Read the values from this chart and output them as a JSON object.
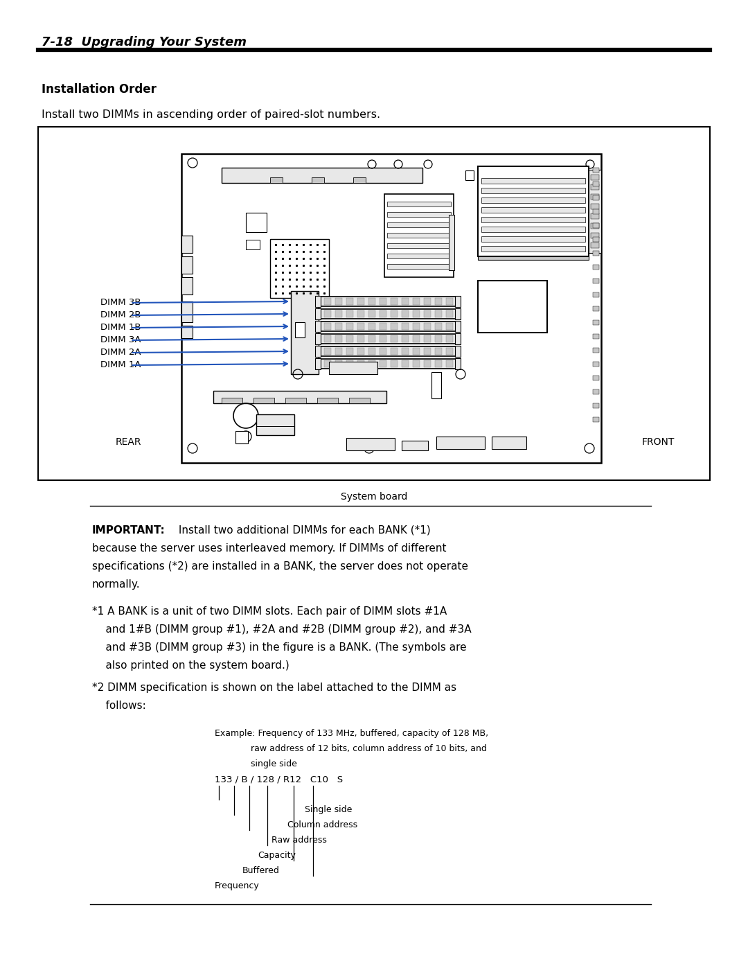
{
  "page_title": "7-18  Upgrading Your System",
  "section_title": "Installation Order",
  "intro_text": "Install two DIMMs in ascending order of paired-slot numbers.",
  "board_caption": "System board",
  "rear_label": "REAR",
  "front_label": "FRONT",
  "dimm_labels": [
    "DIMM 3B",
    "DIMM 2B",
    "DIMM 1B",
    "DIMM 3A",
    "DIMM 2A",
    "DIMM 1A"
  ],
  "important_bold": "IMPORTANT:",
  "important_rest": " Install two additional DIMMs for each BANK (*1)",
  "important_line2": "because the server uses interleaved memory. If DIMMs of different",
  "important_line3": "specifications (*2) are installed in a BANK, the server does not operate",
  "important_line4": "normally.",
  "note1_lines": [
    "*1 A BANK is a unit of two DIMM slots. Each pair of DIMM slots #1A",
    "    and 1#B (DIMM group #1), #2A and #2B (DIMM group #2), and #3A",
    "    and #3B (DIMM group #3) in the figure is a BANK. (The symbols are",
    "    also printed on the system board.)"
  ],
  "note2_lines": [
    "*2 DIMM specification is shown on the label attached to the DIMM as",
    "    follows:"
  ],
  "example_lines": [
    "Example: Frequency of 133 MHz, buffered, capacity of 128 MB,",
    "             raw address of 12 bits, column address of 10 bits, and",
    "             single side"
  ],
  "spec_label": "133 / B / 128 / R12   C10   S",
  "spec_items": [
    "Single side",
    "Column address",
    "Raw address",
    "Capacity",
    "Buffered",
    "Frequency"
  ],
  "bg_color": "#ffffff",
  "text_color": "#000000",
  "arrow_color": "#2255bb",
  "box_border_color": "#000000",
  "gray_light": "#e8e8e8",
  "gray_med": "#c8c8c8",
  "gray_dark": "#a0a0a0"
}
